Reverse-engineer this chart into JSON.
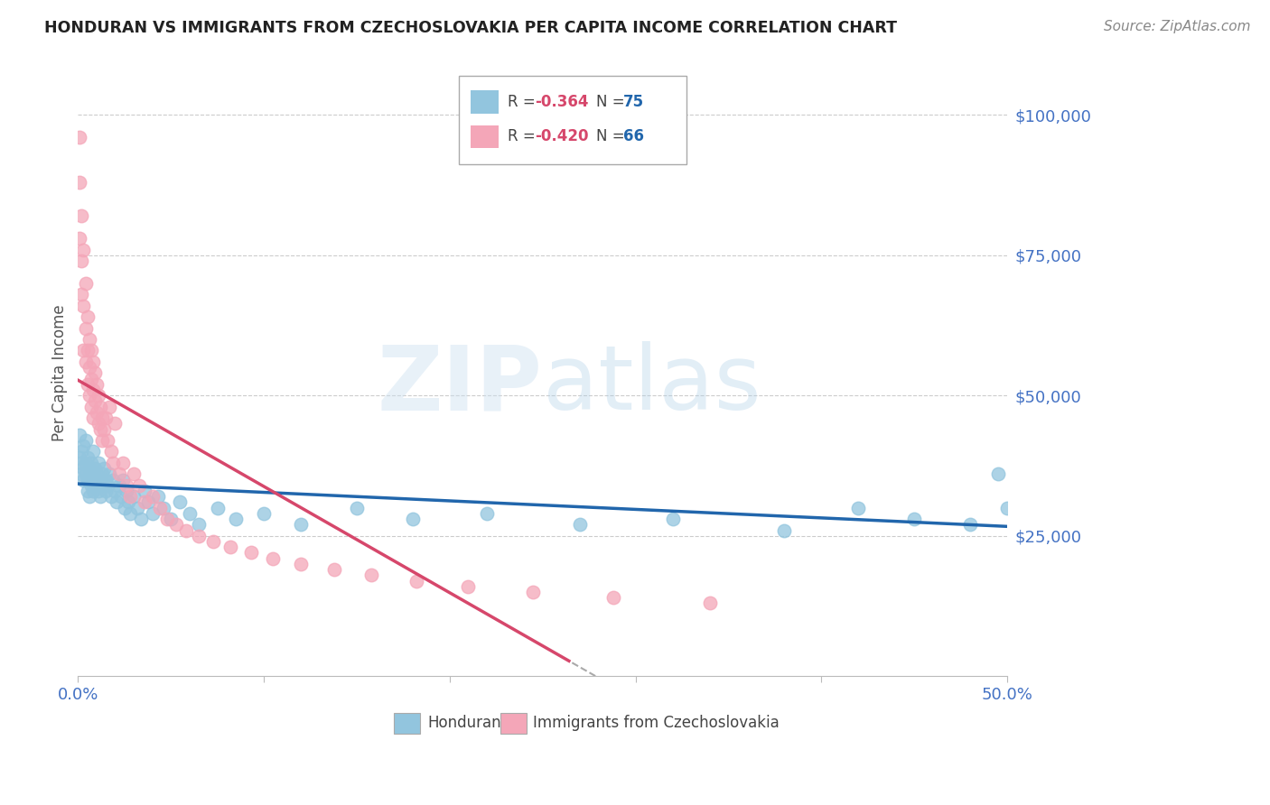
{
  "title": "HONDURAN VS IMMIGRANTS FROM CZECHOSLOVAKIA PER CAPITA INCOME CORRELATION CHART",
  "source": "Source: ZipAtlas.com",
  "ylabel": "Per Capita Income",
  "xlim": [
    0.0,
    0.5
  ],
  "ylim": [
    0,
    108000
  ],
  "blue_color": "#92c5de",
  "pink_color": "#f4a6b8",
  "line_blue": "#2166ac",
  "line_pink": "#d6476b",
  "watermark_zip": "ZIP",
  "watermark_atlas": "atlas",
  "legend_r1": "-0.364",
  "legend_n1": "75",
  "legend_r2": "-0.420",
  "legend_n2": "66",
  "hondurans_x": [
    0.001,
    0.001,
    0.002,
    0.002,
    0.002,
    0.003,
    0.003,
    0.003,
    0.004,
    0.004,
    0.004,
    0.005,
    0.005,
    0.005,
    0.006,
    0.006,
    0.006,
    0.007,
    0.007,
    0.008,
    0.008,
    0.008,
    0.009,
    0.009,
    0.01,
    0.01,
    0.011,
    0.011,
    0.012,
    0.012,
    0.013,
    0.013,
    0.014,
    0.015,
    0.015,
    0.016,
    0.017,
    0.018,
    0.019,
    0.02,
    0.021,
    0.022,
    0.023,
    0.024,
    0.025,
    0.026,
    0.027,
    0.028,
    0.03,
    0.032,
    0.034,
    0.036,
    0.038,
    0.04,
    0.043,
    0.046,
    0.05,
    0.055,
    0.06,
    0.065,
    0.075,
    0.085,
    0.1,
    0.12,
    0.15,
    0.18,
    0.22,
    0.27,
    0.32,
    0.38,
    0.42,
    0.45,
    0.48,
    0.495,
    0.5
  ],
  "hondurans_y": [
    43000,
    39000,
    40000,
    36000,
    38000,
    37000,
    41000,
    35000,
    38000,
    36000,
    42000,
    35000,
    39000,
    33000,
    37000,
    35000,
    32000,
    38000,
    34000,
    36000,
    33000,
    40000,
    35000,
    37000,
    34000,
    36000,
    33000,
    38000,
    35000,
    32000,
    36000,
    34000,
    37000,
    33000,
    35000,
    34000,
    36000,
    32000,
    35000,
    33000,
    31000,
    34000,
    32000,
    35000,
    30000,
    33000,
    31000,
    29000,
    32000,
    30000,
    28000,
    33000,
    31000,
    29000,
    32000,
    30000,
    28000,
    31000,
    29000,
    27000,
    30000,
    28000,
    29000,
    27000,
    30000,
    28000,
    29000,
    27000,
    28000,
    26000,
    30000,
    28000,
    27000,
    36000,
    30000
  ],
  "czech_x": [
    0.001,
    0.001,
    0.001,
    0.002,
    0.002,
    0.002,
    0.003,
    0.003,
    0.003,
    0.004,
    0.004,
    0.004,
    0.005,
    0.005,
    0.005,
    0.006,
    0.006,
    0.006,
    0.007,
    0.007,
    0.007,
    0.008,
    0.008,
    0.008,
    0.009,
    0.009,
    0.01,
    0.01,
    0.011,
    0.011,
    0.012,
    0.012,
    0.013,
    0.013,
    0.014,
    0.015,
    0.016,
    0.017,
    0.018,
    0.019,
    0.02,
    0.022,
    0.024,
    0.026,
    0.028,
    0.03,
    0.033,
    0.036,
    0.04,
    0.044,
    0.048,
    0.053,
    0.058,
    0.065,
    0.073,
    0.082,
    0.093,
    0.105,
    0.12,
    0.138,
    0.158,
    0.182,
    0.21,
    0.245,
    0.288,
    0.34
  ],
  "czech_y": [
    96000,
    88000,
    78000,
    82000,
    74000,
    68000,
    76000,
    66000,
    58000,
    70000,
    62000,
    56000,
    64000,
    58000,
    52000,
    60000,
    55000,
    50000,
    58000,
    53000,
    48000,
    56000,
    51000,
    46000,
    54000,
    49000,
    52000,
    47000,
    50000,
    45000,
    48000,
    44000,
    46000,
    42000,
    44000,
    46000,
    42000,
    48000,
    40000,
    38000,
    45000,
    36000,
    38000,
    34000,
    32000,
    36000,
    34000,
    31000,
    32000,
    30000,
    28000,
    27000,
    26000,
    25000,
    24000,
    23000,
    22000,
    21000,
    20000,
    19000,
    18000,
    17000,
    16000,
    15000,
    14000,
    13000
  ]
}
